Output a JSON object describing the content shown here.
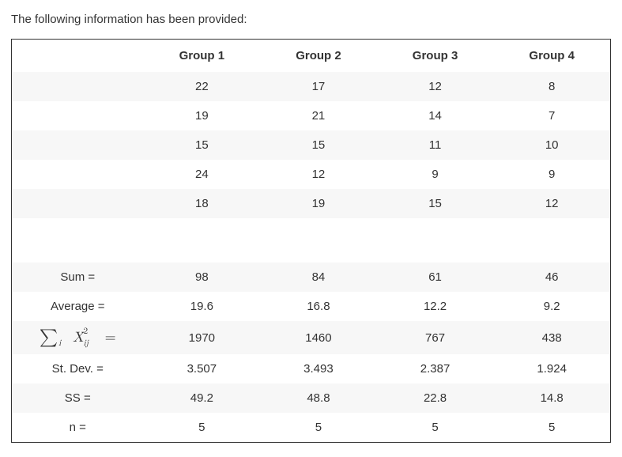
{
  "intro_text": "The following information has been provided:",
  "table": {
    "type": "table",
    "background_color": "#ffffff",
    "stripe_color": "#f7f7f7",
    "border_color": "#333333",
    "text_color": "#333333",
    "header_fontsize": 15,
    "cell_fontsize": 15,
    "columns": [
      "Group 1",
      "Group 2",
      "Group 3",
      "Group 4"
    ],
    "data_rows": [
      [
        "22",
        "17",
        "12",
        "8"
      ],
      [
        "19",
        "21",
        "14",
        "7"
      ],
      [
        "15",
        "15",
        "11",
        "10"
      ],
      [
        "24",
        "12",
        "9",
        "9"
      ],
      [
        "18",
        "19",
        "15",
        "12"
      ]
    ],
    "summary_rows": [
      {
        "label": "Sum =",
        "values": [
          "98",
          "84",
          "61",
          "46"
        ]
      },
      {
        "label": "Average =",
        "values": [
          "19.6",
          "16.8",
          "12.2",
          "9.2"
        ]
      },
      {
        "label": "SUMSQ",
        "values": [
          "1970",
          "1460",
          "767",
          "438"
        ]
      },
      {
        "label": "St. Dev. =",
        "values": [
          "3.507",
          "3.493",
          "2.387",
          "1.924"
        ]
      },
      {
        "label": "SS =",
        "values": [
          "49.2",
          "48.8",
          "22.8",
          "14.8"
        ]
      },
      {
        "label": "n =",
        "values": [
          "5",
          "5",
          "5",
          "5"
        ]
      }
    ],
    "sumsq_label_parts": {
      "sigma": "∑",
      "sigma_sub": "i",
      "x": "X",
      "x_sup": "2",
      "x_sub": "ij",
      "eq": "="
    }
  }
}
